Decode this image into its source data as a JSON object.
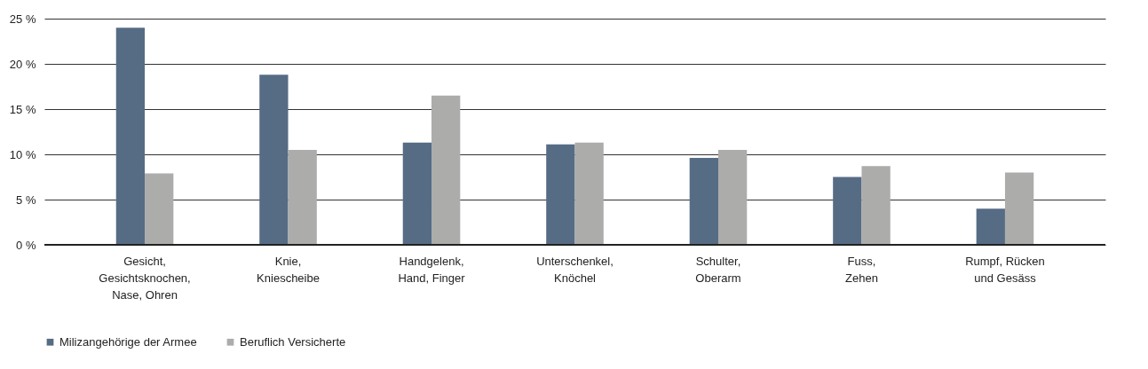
{
  "chart_data": {
    "type": "bar",
    "categories": [
      "Gesicht,\nGesichtsknochen,\nNase, Ohren",
      "Knie,\nKniescheibe",
      "Handgelenk,\nHand, Finger",
      "Unterschenkel,\nKnöchel",
      "Schulter,\nOberarm",
      "Fuss,\nZehen",
      "Rumpf, Rücken\nund Gesäss"
    ],
    "series": [
      {
        "name": "Milizangehörige der Armee",
        "color": "#566c84",
        "values": [
          24.0,
          18.8,
          11.3,
          11.1,
          9.6,
          7.5,
          4.0
        ]
      },
      {
        "name": "Beruflich Versicherte",
        "color": "#acacab",
        "values": [
          7.9,
          10.5,
          16.5,
          11.3,
          10.5,
          8.7,
          8.0
        ]
      }
    ],
    "ylim": [
      0,
      25
    ],
    "yticks": [
      {
        "value": 0,
        "label": "0 %"
      },
      {
        "value": 5,
        "label": "5 %"
      },
      {
        "value": 10,
        "label": "10 %"
      },
      {
        "value": 15,
        "label": "15 %"
      },
      {
        "value": 20,
        "label": "20 %"
      },
      {
        "value": 25,
        "label": "25 %"
      }
    ],
    "grid": "y",
    "legend": "bottom left"
  }
}
